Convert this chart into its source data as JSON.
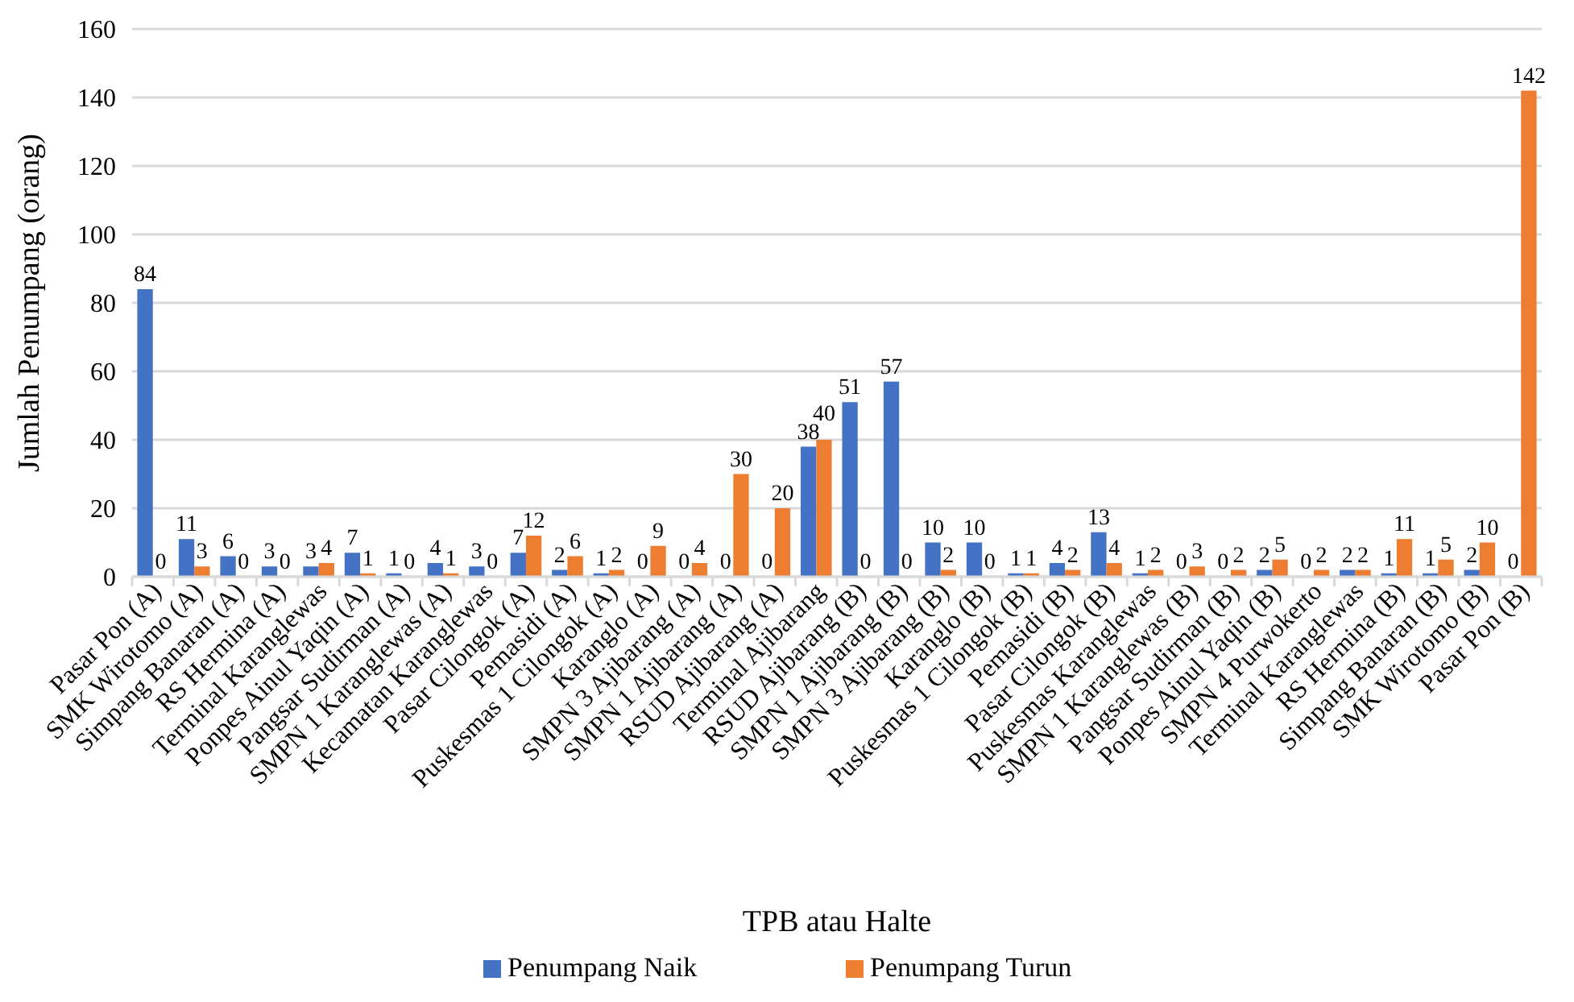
{
  "chart_data": {
    "type": "bar",
    "xlabel": "TPB atau Halte",
    "ylabel": "Jumlah Penumpang (orang)",
    "categories": [
      "Pasar Pon (A)",
      "SMK Wirotomo (A)",
      "Simpang Banaran (A)",
      "RS Hermina (A)",
      "Terminal Karanglewas",
      "Ponpes Ainul Yaqin (A)",
      "Pangsar Sudirman (A)",
      "SMPN 1 Karanglewas (A)",
      "Kecamatan Karanglewas",
      "Pasar Cilongok (A)",
      "Pemasidi (A)",
      "Puskesmas 1 Cilongok (A)",
      "Karanglo (A)",
      "SMPN 3 Ajibarang (A)",
      "SMPN 1 Ajibarang (A)",
      "RSUD Ajibarang (A)",
      "Terminal Ajibarang",
      "RSUD Ajibarang (B)",
      "SMPN 1 Ajibarang (B)",
      "SMPN 3 Ajibarang (B)",
      "Karanglo (B)",
      "Puskesmas 1 Cilongok (B)",
      "Pemasidi (B)",
      "Pasar Cilongok (B)",
      "Puskesmas Karanglewas",
      "SMPN 1 Karanglewas (B)",
      "Pangsar Sudirman (B)",
      "Ponpes Ainul Yaqin (B)",
      "SMPN 4 Purwokerto",
      "Terminal Karanglewas",
      "RS Hermina (B)",
      "Simpang Banaran (B)",
      "SMK Wirotomo (B)",
      "Pasar Pon (B)"
    ],
    "series": [
      {
        "name": "Penumpang Naik",
        "color": "#4472c4",
        "values": [
          84,
          11,
          6,
          3,
          3,
          7,
          1,
          4,
          3,
          7,
          2,
          1,
          0,
          0,
          0,
          0,
          38,
          51,
          57,
          10,
          10,
          1,
          4,
          13,
          1,
          0,
          0,
          2,
          0,
          2,
          1,
          1,
          2,
          0
        ]
      },
      {
        "name": "Penumpang Turun",
        "color": "#ed7d31",
        "values": [
          0,
          3,
          0,
          0,
          4,
          1,
          0,
          1,
          0,
          12,
          6,
          2,
          9,
          4,
          30,
          20,
          40,
          0,
          0,
          2,
          0,
          1,
          2,
          4,
          2,
          3,
          2,
          5,
          2,
          2,
          11,
          5,
          10,
          142
        ]
      }
    ],
    "ylim": [
      0,
      160
    ],
    "yticks": [
      0,
      20,
      40,
      60,
      80,
      100,
      120,
      140,
      160
    ],
    "grid": "y",
    "legend": "bottom",
    "data_labels": true
  }
}
